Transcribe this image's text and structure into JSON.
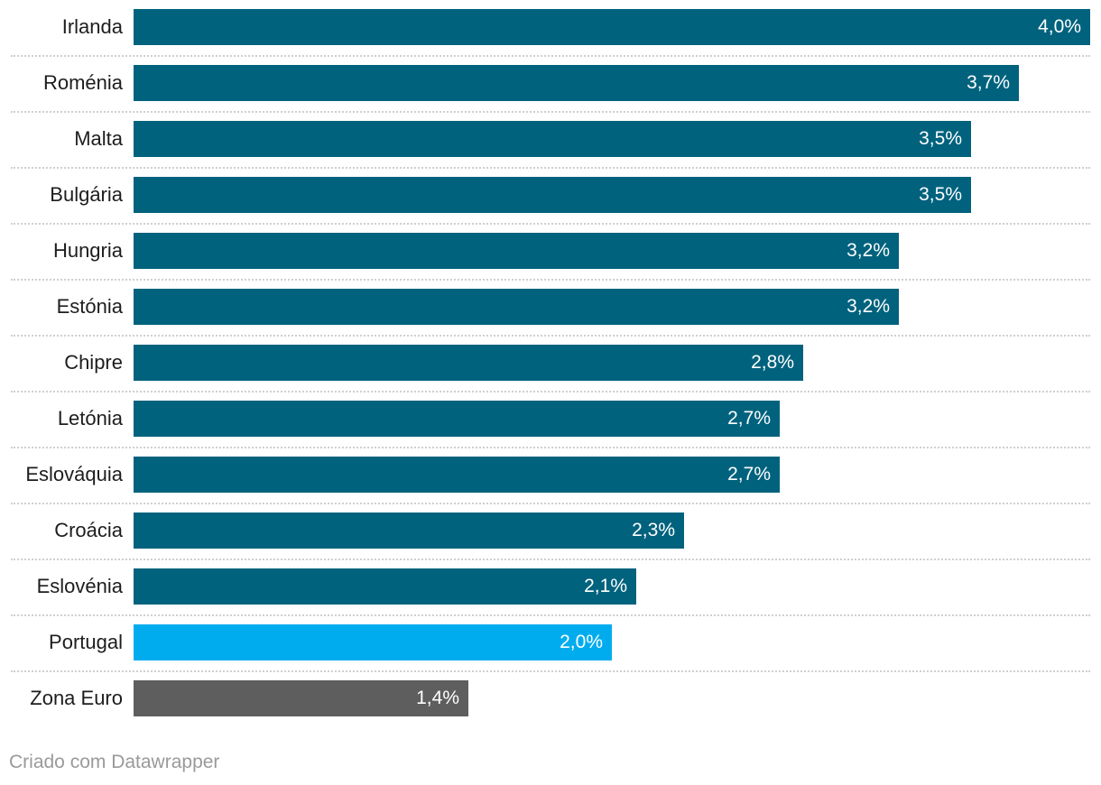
{
  "chart_data": {
    "type": "bar",
    "orientation": "horizontal",
    "categories": [
      "Irlanda",
      "Roménia",
      "Malta",
      "Bulgária",
      "Hungria",
      "Estónia",
      "Chipre",
      "Letónia",
      "Eslováquia",
      "Croácia",
      "Eslovénia",
      "Portugal",
      "Zona Euro"
    ],
    "values": [
      4.0,
      3.7,
      3.5,
      3.5,
      3.2,
      3.2,
      2.8,
      2.7,
      2.7,
      2.3,
      2.1,
      2.0,
      1.4
    ],
    "value_labels": [
      "4,0%",
      "3,7%",
      "3,5%",
      "3,5%",
      "3,2%",
      "3,2%",
      "2,8%",
      "2,7%",
      "2,7%",
      "2,3%",
      "2,1%",
      "2,0%",
      "1,4%"
    ],
    "colors": [
      "#00627d",
      "#00627d",
      "#00627d",
      "#00627d",
      "#00627d",
      "#00627d",
      "#00627d",
      "#00627d",
      "#00627d",
      "#00627d",
      "#00627d",
      "#00acee",
      "#5e5e5e"
    ],
    "xlim": [
      0,
      4.0
    ],
    "title": "",
    "xlabel": "",
    "ylabel": ""
  },
  "footer": {
    "credit": "Criado com Datawrapper"
  }
}
